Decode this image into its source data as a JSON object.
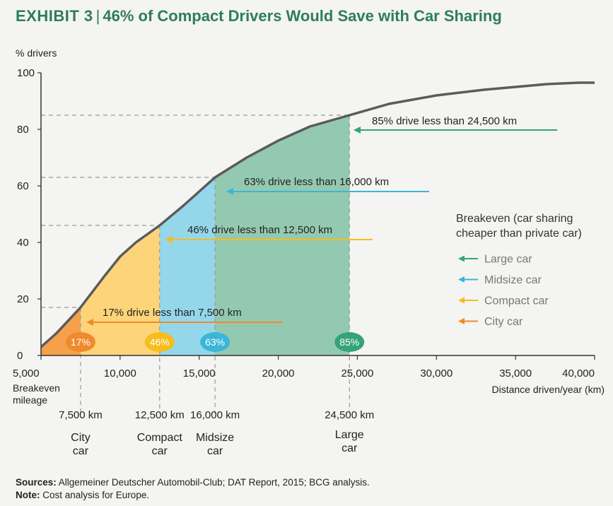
{
  "title": {
    "exhibit": "EXHIBIT 3",
    "text": "46% of Compact Drivers Would Save with Car Sharing"
  },
  "chart_data": {
    "type": "area",
    "ylabel": "% drivers",
    "xlabel": "Distance driven/year (km)",
    "xlim": [
      5000,
      40000
    ],
    "ylim": [
      0,
      100
    ],
    "x_ticks": [
      "5,000",
      "10,000",
      "15,000",
      "20,000",
      "25,000",
      "30,000",
      "35,000",
      "40,000"
    ],
    "x_tick_values": [
      5000,
      10000,
      15000,
      20000,
      25000,
      30000,
      35000,
      40000
    ],
    "y_ticks": [
      0,
      20,
      40,
      60,
      80,
      100
    ],
    "grid": false,
    "breakeven_label": "Breakeven mileage",
    "curve": {
      "x": [
        5000,
        6000,
        7500,
        9000,
        10000,
        11000,
        12500,
        14000,
        15000,
        16000,
        18000,
        20000,
        22000,
        24500,
        27000,
        30000,
        33000,
        35000,
        37000,
        39000,
        40000
      ],
      "y": [
        3,
        8,
        17,
        28,
        35,
        40,
        46,
        53,
        58,
        63,
        70,
        76,
        81,
        85,
        89,
        92,
        94,
        95,
        96,
        96.5,
        96.5
      ]
    },
    "segments": [
      {
        "name": "City car",
        "mileage": 7500,
        "mileage_label": "7,500 km",
        "share": 17,
        "bubble": "17%",
        "annotation": "17% drive less than 7,500 km",
        "category_line1": "City",
        "category_line2": "car",
        "color": "#f5a04a",
        "bubble_color": "#f08a2c"
      },
      {
        "name": "Compact car",
        "mileage": 12500,
        "mileage_label": "12,500 km",
        "share": 46,
        "bubble": "46%",
        "annotation": "46% drive less than 12,500 km",
        "category_line1": "Compact",
        "category_line2": "car",
        "color": "#fdd47a",
        "bubble_color": "#f6bd1d"
      },
      {
        "name": "Midsize car",
        "mileage": 16000,
        "mileage_label": "16,000 km",
        "share": 63,
        "bubble": "63%",
        "annotation": "63% drive less than 16,000 km",
        "category_line1": "Midsize",
        "category_line2": "car",
        "color": "#95d7ea",
        "bubble_color": "#3ab6d9"
      },
      {
        "name": "Large car",
        "mileage": 24500,
        "mileage_label": "24,500 km",
        "share": 85,
        "bubble": "85%",
        "annotation": "85% drive less than 24,500 km",
        "category_line1": "Large",
        "category_line2": "car",
        "color": "#94c9b1",
        "bubble_color": "#35a37c"
      }
    ],
    "legend": {
      "title_line1": "Breakeven (car sharing",
      "title_line2": "cheaper than private car)",
      "items": [
        {
          "label": "Large car",
          "color": "#35a37c"
        },
        {
          "label": "Midsize car",
          "color": "#3ab6d9"
        },
        {
          "label": "Compact car",
          "color": "#f6bd1d"
        },
        {
          "label": "City car",
          "color": "#f08a2c"
        }
      ],
      "placement": "right"
    }
  },
  "footer": {
    "sources_label": "Sources:",
    "sources_text": "Allgemeiner Deutscher Automobil-Club; DAT Report, 2015; BCG analysis.",
    "note_label": "Note:",
    "note_text": "Cost analysis for Europe."
  }
}
